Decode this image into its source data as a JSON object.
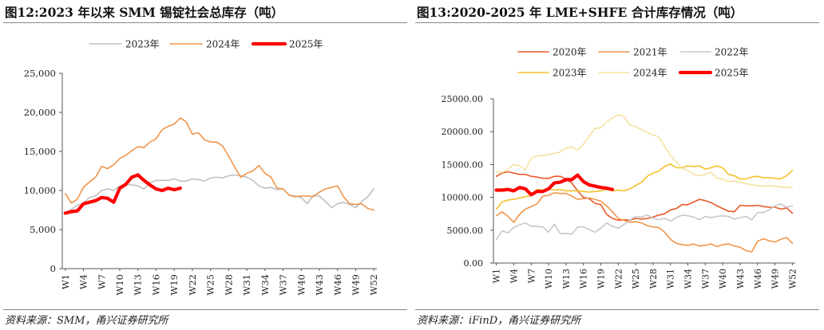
{
  "chart_data": [
    {
      "type": "line",
      "title": "图12:2023 年以来 SMM 锡锭社会总库存（吨）",
      "source": "资料来源：SMM，甬兴证券研究所",
      "xlabel": "",
      "ylabel": "",
      "ylim": [
        0,
        25000
      ],
      "yticks": [
        "0",
        "5,000",
        "10,000",
        "15,000",
        "20,000",
        "25,000"
      ],
      "ytick_values": [
        0,
        5000,
        10000,
        15000,
        20000,
        25000
      ],
      "x_count": 52,
      "xticks": [
        "W1",
        "W4",
        "W7",
        "W10",
        "W13",
        "W16",
        "W19",
        "W22",
        "W25",
        "W28",
        "W31",
        "W34",
        "W37",
        "W40",
        "W43",
        "W46",
        "W49",
        "W52"
      ],
      "legend_position": "top",
      "series": [
        {
          "name": "2023年",
          "color": "#c0c0c0",
          "width": 1.6,
          "values": [
            7000,
            7600,
            8100,
            8400,
            9100,
            9300,
            10000,
            10200,
            10000,
            10600,
            10800,
            10700,
            10600,
            10200,
            11000,
            11300,
            11300,
            11300,
            11500,
            11200,
            11200,
            11500,
            11400,
            11200,
            11600,
            11700,
            11600,
            11900,
            12000,
            11900,
            11700,
            11300,
            10600,
            10300,
            10400,
            10100,
            10200,
            9400,
            9300,
            9100,
            8300,
            9400,
            9300,
            8600,
            7800,
            8300,
            8500,
            8200,
            7800,
            8600,
            9200,
            10200
          ]
        },
        {
          "name": "2024年",
          "color": "#f0954a",
          "width": 1.6,
          "values": [
            9600,
            8400,
            8900,
            10400,
            11100,
            11700,
            13100,
            12800,
            13300,
            14100,
            14500,
            15100,
            15600,
            15500,
            16200,
            16600,
            17800,
            18200,
            18500,
            19300,
            18800,
            17200,
            17400,
            16500,
            16200,
            16200,
            15700,
            14400,
            13000,
            11700,
            12200,
            12500,
            13200,
            12200,
            11700,
            10300,
            10200,
            9400,
            9200,
            9300,
            9300,
            9200,
            9800,
            10200,
            10400,
            10600,
            9200,
            8300,
            8200,
            8300,
            7700,
            7500
          ]
        },
        {
          "name": "2025年",
          "color": "#ff0000",
          "width": 4.2,
          "values": [
            7100,
            7300,
            7400,
            8300,
            8500,
            8700,
            9100,
            9000,
            8500,
            10300,
            10800,
            11700,
            12000,
            11300,
            10700,
            10200,
            10000,
            10300,
            10100,
            10300
          ]
        }
      ]
    },
    {
      "type": "line",
      "title": "图13:2020-2025 年 LME+SHFE 合计库存情况（吨）",
      "source": "资料来源：iFinD，甬兴证券研究所",
      "xlabel": "",
      "ylabel": "",
      "ylim": [
        0,
        25000
      ],
      "yticks": [
        "0.00",
        "5000.00",
        "10000.00",
        "15000.00",
        "20000.00",
        "25000.00"
      ],
      "ytick_values": [
        0,
        5000,
        10000,
        15000,
        20000,
        25000
      ],
      "x_count": 52,
      "xticks": [
        "W1",
        "W4",
        "W7",
        "W10",
        "W13",
        "W16",
        "W19",
        "W22",
        "W25",
        "W28",
        "W31",
        "W34",
        "W37",
        "W40",
        "W43",
        "W46",
        "W49",
        "W52"
      ],
      "legend_position": "top",
      "series": [
        {
          "name": "2020年",
          "color": "#e8592a",
          "width": 1.6,
          "values": [
            13200,
            13700,
            13900,
            13700,
            13500,
            13500,
            13200,
            13100,
            12900,
            12900,
            13200,
            13200,
            12800,
            12200,
            11000,
            10000,
            9800,
            9100,
            8900,
            7400,
            6800,
            6500,
            6600,
            6500,
            6800,
            6700,
            6800,
            7000,
            7300,
            7500,
            8100,
            8300,
            8900,
            8900,
            9300,
            9700,
            9500,
            9200,
            8700,
            8300,
            7900,
            7800,
            8800,
            8700,
            8700,
            8800,
            8600,
            8500,
            8500,
            8200,
            8400,
            7600
          ]
        },
        {
          "name": "2021年",
          "color": "#f0954a",
          "width": 1.6,
          "values": [
            7200,
            7800,
            7100,
            6200,
            7400,
            8200,
            8600,
            9000,
            10200,
            10300,
            10700,
            10600,
            10600,
            10200,
            9700,
            9800,
            9900,
            9700,
            9400,
            8700,
            7800,
            6800,
            6500,
            6200,
            6300,
            6100,
            5700,
            5500,
            5400,
            4700,
            3600,
            3000,
            2800,
            2700,
            2900,
            2600,
            2700,
            2900,
            2500,
            2800,
            2900,
            2600,
            2400,
            1900,
            1700,
            3300,
            3700,
            3400,
            3200,
            3600,
            3900,
            3000
          ]
        },
        {
          "name": "2022年",
          "color": "#c8c8c8",
          "width": 1.6,
          "values": [
            3600,
            4900,
            4600,
            5400,
            5800,
            6100,
            5600,
            5600,
            5500,
            4700,
            5900,
            4500,
            4500,
            4400,
            5500,
            5500,
            5100,
            4700,
            5300,
            6100,
            5600,
            5300,
            5900,
            6500,
            7100,
            7000,
            7300,
            6800,
            6600,
            6800,
            6400,
            6900,
            7300,
            7200,
            7000,
            6600,
            7100,
            6900,
            7100,
            7200,
            7100,
            6700,
            6900,
            7100,
            6600,
            7700,
            7700,
            8100,
            8700,
            9000,
            8500,
            8700
          ]
        },
        {
          "name": "2023年",
          "color": "#f5c02a",
          "width": 1.6,
          "values": [
            8200,
            9300,
            9600,
            9700,
            9900,
            10100,
            10300,
            11200,
            11100,
            11300,
            11100,
            11200,
            11000,
            11000,
            11000,
            10900,
            10800,
            10900,
            11000,
            11200,
            11000,
            11100,
            11000,
            11300,
            11800,
            12300,
            13200,
            13700,
            14000,
            14700,
            15100,
            14500,
            14500,
            14800,
            14700,
            14800,
            14300,
            14500,
            14800,
            14500,
            13500,
            13300,
            12800,
            12800,
            13100,
            13200,
            13000,
            13000,
            12900,
            12800,
            13300,
            14100
          ]
        },
        {
          "name": "2024年",
          "color": "#f5e2a0",
          "width": 1.6,
          "values": [
            13900,
            13800,
            14300,
            15000,
            14800,
            14200,
            16000,
            16300,
            16400,
            16500,
            16700,
            16900,
            17500,
            17700,
            17200,
            18100,
            19300,
            20500,
            20600,
            21500,
            22100,
            22600,
            22300,
            21000,
            20800,
            20300,
            19900,
            19500,
            19200,
            17800,
            16400,
            15400,
            14400,
            14100,
            13500,
            13300,
            13500,
            13800,
            12900,
            12800,
            12400,
            12500,
            12300,
            12100,
            11900,
            11800,
            11700,
            11800,
            11700,
            11600,
            11500,
            11500
          ]
        },
        {
          "name": "2025年",
          "color": "#ff0000",
          "width": 4.2,
          "values": [
            11100,
            11100,
            11200,
            11000,
            11500,
            11300,
            10400,
            10900,
            10900,
            11300,
            12200,
            12300,
            12700,
            12700,
            13400,
            12400,
            11900,
            11700,
            11500,
            11400,
            11200
          ]
        }
      ]
    }
  ]
}
